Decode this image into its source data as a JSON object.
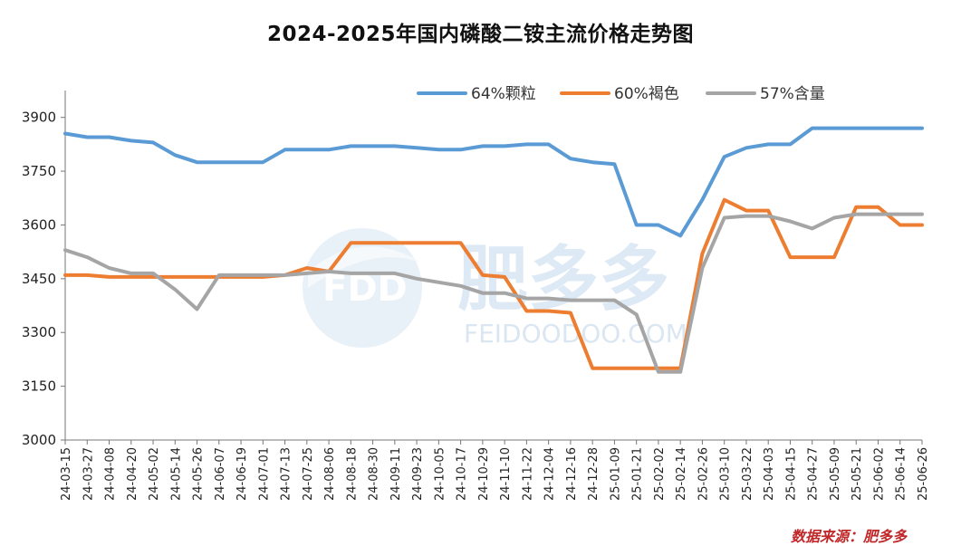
{
  "chart_data": {
    "type": "line",
    "title": "2024-2025年国内磷酸二铵主流价格走势图",
    "ylim": [
      3000,
      3975
    ],
    "yticks": [
      3000,
      3150,
      3300,
      3450,
      3600,
      3750,
      3900
    ],
    "x": [
      "24-03-15",
      "24-03-27",
      "24-04-08",
      "24-04-20",
      "24-05-02",
      "24-05-14",
      "24-05-26",
      "24-06-07",
      "24-06-19",
      "24-07-01",
      "24-07-13",
      "24-07-25",
      "24-08-06",
      "24-08-18",
      "24-08-30",
      "24-09-11",
      "24-09-23",
      "24-10-05",
      "24-10-17",
      "24-10-29",
      "24-11-10",
      "24-11-22",
      "24-12-04",
      "24-12-16",
      "24-12-28",
      "25-01-09",
      "25-01-21",
      "25-02-02",
      "25-02-14",
      "25-02-26",
      "25-03-10",
      "25-03-22",
      "25-04-03",
      "25-04-15",
      "25-04-27",
      "25-05-09",
      "25-05-21",
      "25-06-02",
      "25-06-14",
      "25-06-26"
    ],
    "legend_position": "top-right",
    "series": [
      {
        "name": "64%颗粒",
        "color": "#5b9bd5",
        "values": [
          3855,
          3845,
          3845,
          3835,
          3830,
          3795,
          3775,
          3775,
          3775,
          3775,
          3810,
          3810,
          3810,
          3820,
          3820,
          3820,
          3815,
          3810,
          3810,
          3820,
          3820,
          3825,
          3825,
          3785,
          3775,
          3770,
          3600,
          3600,
          3570,
          3670,
          3790,
          3815,
          3825,
          3825,
          3870,
          3870,
          3870,
          3870,
          3870,
          3870
        ]
      },
      {
        "name": "60%褐色",
        "color": "#ed7d31",
        "values": [
          3460,
          3460,
          3455,
          3455,
          3455,
          3455,
          3455,
          3455,
          3455,
          3455,
          3460,
          3480,
          3470,
          3550,
          3550,
          3550,
          3550,
          3550,
          3550,
          3460,
          3455,
          3360,
          3360,
          3355,
          3200,
          3200,
          3200,
          3200,
          3200,
          3520,
          3670,
          3640,
          3640,
          3510,
          3510,
          3510,
          3650,
          3650,
          3600,
          3600
        ]
      },
      {
        "name": "57%含量",
        "color": "#a5a5a5",
        "values": [
          3530,
          3510,
          3480,
          3465,
          3465,
          3420,
          3365,
          3460,
          3460,
          3460,
          3460,
          3465,
          3470,
          3465,
          3465,
          3465,
          3450,
          3440,
          3430,
          3410,
          3410,
          3395,
          3395,
          3390,
          3390,
          3390,
          3350,
          3190,
          3190,
          3480,
          3620,
          3625,
          3625,
          3610,
          3590,
          3620,
          3630,
          3630,
          3630,
          3630
        ]
      }
    ]
  },
  "watermark": {
    "logo_text": "FDD",
    "brand_text": "肥多多",
    "url_text": "FEIDOODOO.COM"
  },
  "source_note": "数据来源：肥多多"
}
